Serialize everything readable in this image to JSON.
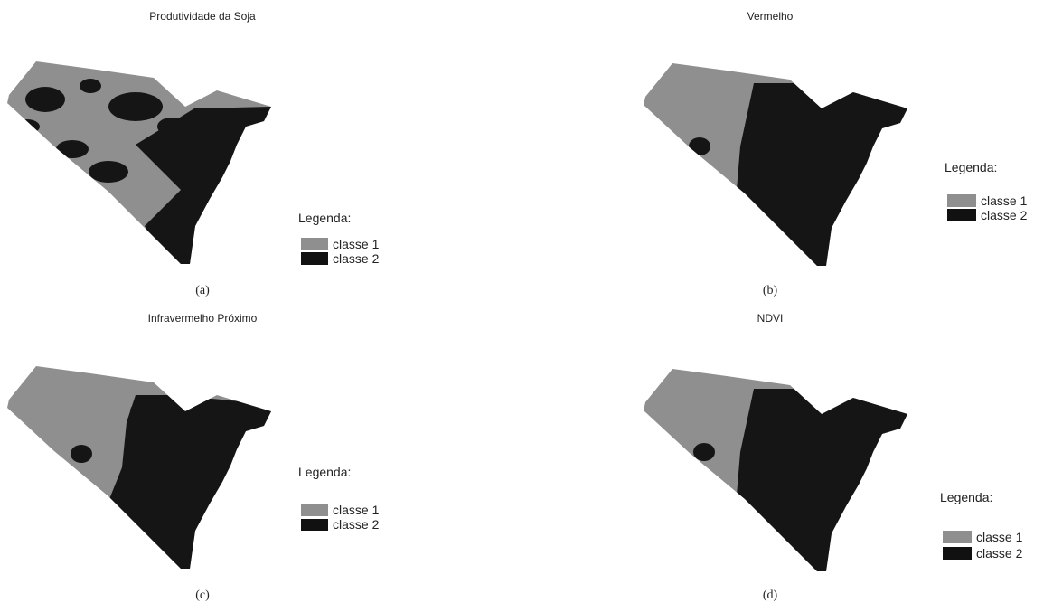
{
  "panels": [
    {
      "title": "Produtividade da Soja",
      "legend": {
        "title": "Legenda:",
        "items": [
          "classe 1",
          "classe 2"
        ]
      },
      "caption": "(a)"
    },
    {
      "title": "Vermelho",
      "legend": {
        "title": "Legenda:",
        "items": [
          "classe 1",
          "classe 2"
        ]
      },
      "caption": "(b)"
    },
    {
      "title": "Infravermelho Próximo",
      "legend": {
        "title": "Legenda:",
        "items": [
          "classe 1",
          "classe 2"
        ]
      },
      "caption": "(c)"
    },
    {
      "title": "NDVI",
      "legend": {
        "title": "Legenda:",
        "items": [
          "classe 1",
          "classe 2"
        ]
      },
      "caption": "(d)"
    }
  ]
}
